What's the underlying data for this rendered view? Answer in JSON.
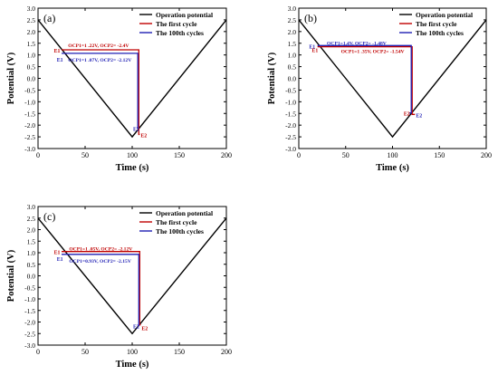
{
  "chart_data": [
    {
      "panel_label": "(a)",
      "type": "line",
      "xlabel": "Time (s)",
      "ylabel": "Potential (V)",
      "xlim": [
        0,
        200
      ],
      "ylim": [
        -3.0,
        3.0
      ],
      "xticks": [
        0,
        50,
        100,
        150,
        200
      ],
      "yticks": [
        -3.0,
        -2.5,
        -2.0,
        -1.5,
        -1.0,
        -0.5,
        0.0,
        0.5,
        1.0,
        1.5,
        2.0,
        2.5,
        3.0
      ],
      "legend": [
        "Operation potential",
        "The first cycle",
        "The 100th cycles"
      ],
      "legend_position": "top-right",
      "series": [
        {
          "name": "Operation potential",
          "color": "#000000",
          "x": [
            0,
            100,
            200
          ],
          "y": [
            2.5,
            -2.5,
            2.5
          ]
        },
        {
          "name": "The first cycle",
          "color": "#c00000",
          "x": [
            25,
            107,
            107,
            108
          ],
          "y": [
            1.22,
            1.22,
            -2.4,
            -2.4
          ]
        },
        {
          "name": "The 100th cycles",
          "color": "#1f1fb4",
          "x": [
            25,
            106,
            106,
            105
          ],
          "y": [
            1.07,
            1.07,
            -2.12,
            -2.12
          ]
        }
      ],
      "annotations": [
        {
          "text": "OCP1=1 .22V, OCP2= -2.4V",
          "color": "#c00000"
        },
        {
          "text": "OCP1=1 .07V, OCP2= -2.12V",
          "color": "#1f1fb4"
        },
        {
          "text": "E1",
          "color": "#c00000"
        },
        {
          "text": "E1",
          "color": "#1f1fb4"
        },
        {
          "text": "E2",
          "color": "#1f1fb4"
        },
        {
          "text": "E2",
          "color": "#c00000"
        }
      ]
    },
    {
      "panel_label": "(b)",
      "type": "line",
      "xlabel": "Time (s)",
      "ylabel": "Potential (V)",
      "xlim": [
        0,
        200
      ],
      "ylim": [
        -3.0,
        3.0
      ],
      "xticks": [
        0,
        50,
        100,
        150,
        200
      ],
      "yticks": [
        -3.0,
        -2.5,
        -2.0,
        -1.5,
        -1.0,
        -0.5,
        0.0,
        0.5,
        1.0,
        1.5,
        2.0,
        2.5,
        3.0
      ],
      "legend": [
        "Operation potential",
        "The first cycle",
        "The 100th cycles"
      ],
      "legend_position": "top-right",
      "series": [
        {
          "name": "Operation potential",
          "color": "#000000",
          "x": [
            0,
            100,
            200
          ],
          "y": [
            2.5,
            -2.5,
            2.5
          ]
        },
        {
          "name": "The first cycle",
          "color": "#c00000",
          "x": [
            20,
            121,
            121,
            124
          ],
          "y": [
            1.35,
            1.35,
            -1.54,
            -1.54
          ]
        },
        {
          "name": "The 100th cycles",
          "color": "#1f1fb4",
          "x": [
            20,
            120,
            120,
            118
          ],
          "y": [
            1.4,
            1.4,
            -1.48,
            -1.48
          ]
        }
      ],
      "annotations": [
        {
          "text": "OCP1=1.4V, OCP2= -1.48V",
          "color": "#1f1fb4"
        },
        {
          "text": "OCP1=1 .35V, OCP2= -1.54V",
          "color": "#c00000"
        },
        {
          "text": "E1",
          "color": "#1f1fb4"
        },
        {
          "text": "E1",
          "color": "#c00000"
        },
        {
          "text": "E2",
          "color": "#c00000"
        },
        {
          "text": "E2",
          "color": "#1f1fb4"
        }
      ]
    },
    {
      "panel_label": "(c)",
      "type": "line",
      "xlabel": "Time (s)",
      "ylabel": "Potential (V)",
      "xlim": [
        0,
        200
      ],
      "ylim": [
        -3.0,
        3.0
      ],
      "xticks": [
        0,
        50,
        100,
        150,
        200
      ],
      "yticks": [
        -3.0,
        -2.5,
        -2.0,
        -1.5,
        -1.0,
        -0.5,
        0.0,
        0.5,
        1.0,
        1.5,
        2.0,
        2.5,
        3.0
      ],
      "legend": [
        "Operation potential",
        "The first cycle",
        "The 100th cycles"
      ],
      "legend_position": "top-right",
      "series": [
        {
          "name": "Operation potential",
          "color": "#000000",
          "x": [
            0,
            100,
            200
          ],
          "y": [
            2.5,
            -2.5,
            2.5
          ]
        },
        {
          "name": "The first cycle",
          "color": "#c00000",
          "x": [
            25,
            108,
            108,
            109
          ],
          "y": [
            1.05,
            1.05,
            -2.12,
            -2.12
          ]
        },
        {
          "name": "The 100th cycles",
          "color": "#1f1fb4",
          "x": [
            25,
            107,
            107,
            106
          ],
          "y": [
            0.93,
            0.93,
            -2.15,
            -2.15
          ]
        }
      ],
      "annotations": [
        {
          "text": "OCP1=1 .05V, OCP2= -2.12V",
          "color": "#c00000"
        },
        {
          "text": "OCP1=0.93V, OCP2= -2.15V",
          "color": "#1f1fb4"
        },
        {
          "text": "E1",
          "color": "#c00000"
        },
        {
          "text": "E1",
          "color": "#1f1fb4"
        },
        {
          "text": "E2",
          "color": "#1f1fb4"
        },
        {
          "text": "E2",
          "color": "#c00000"
        }
      ]
    }
  ]
}
